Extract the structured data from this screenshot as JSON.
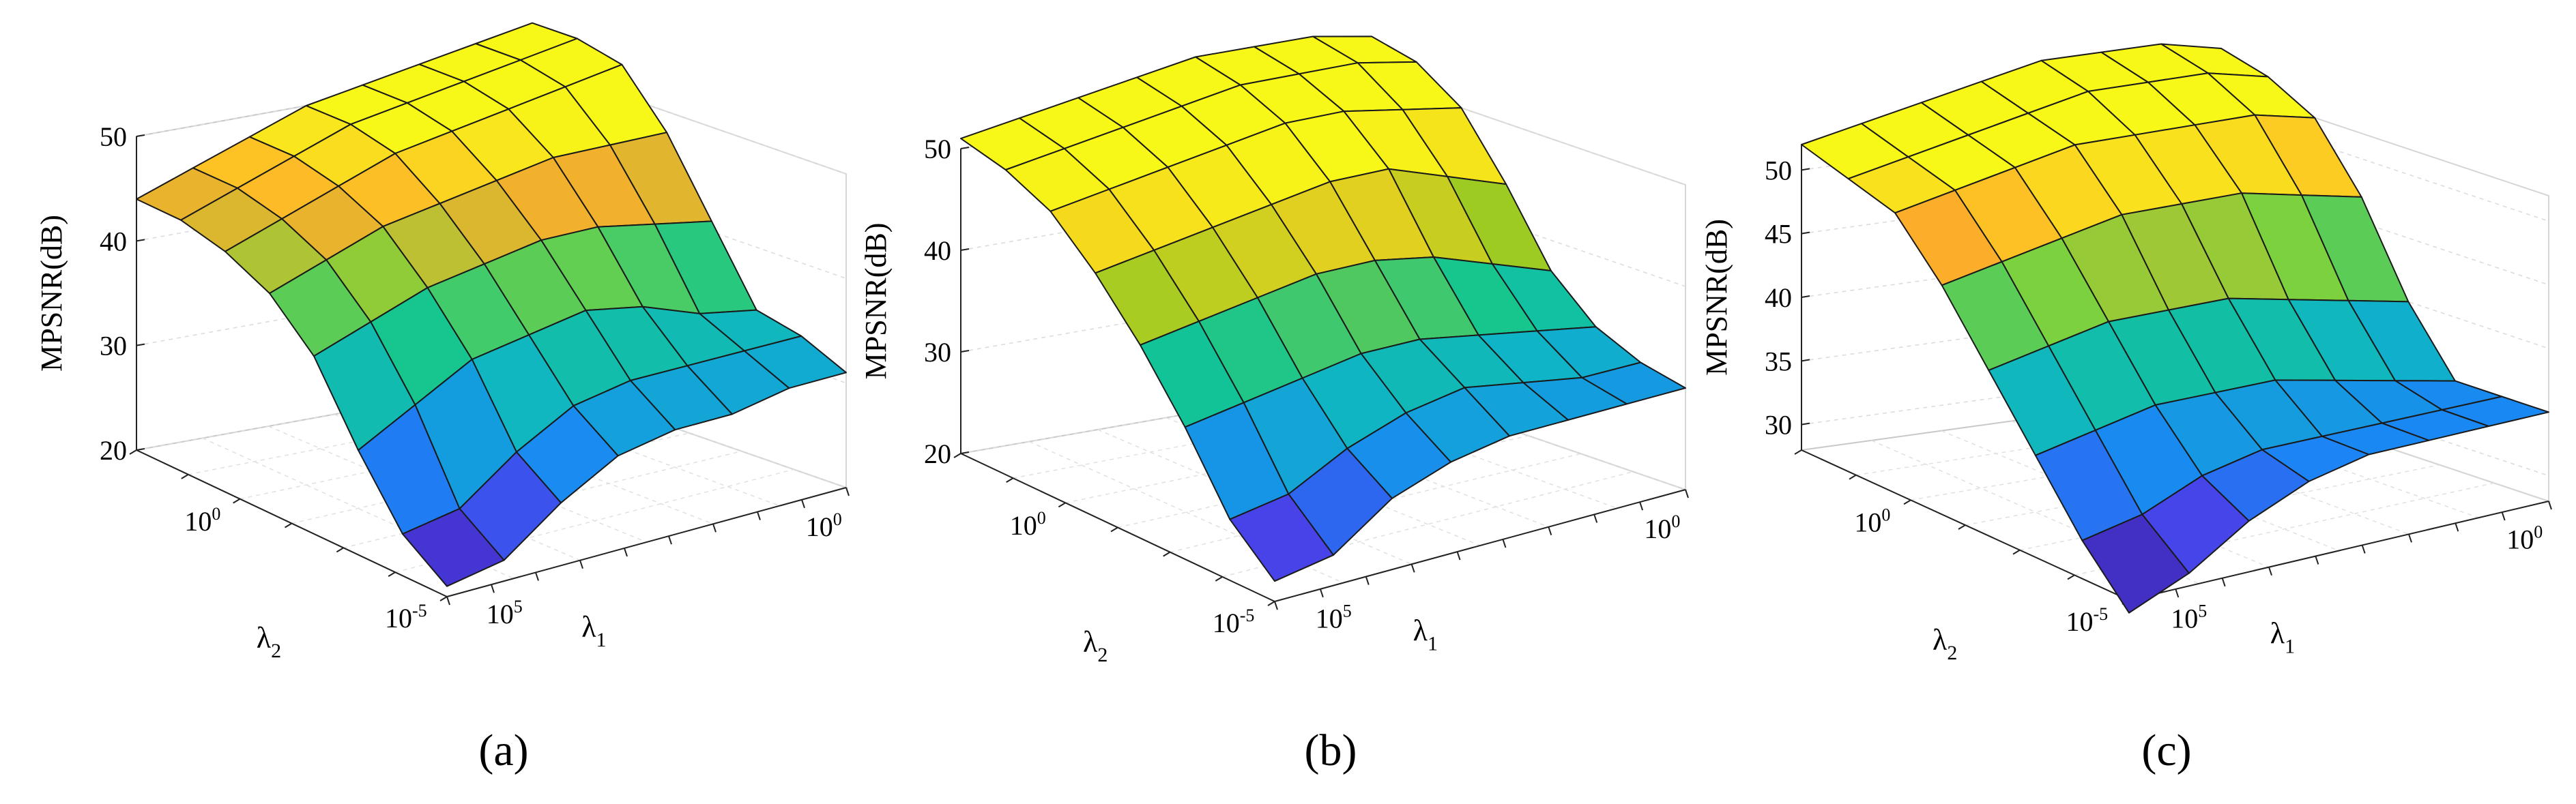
{
  "figure": {
    "panel_labels": [
      "(a)",
      "(b)",
      "(c)"
    ]
  },
  "chart_data": [
    {
      "type": "surface",
      "panel": "(a)",
      "zlabel": "MPSNR(dB)",
      "xlabel": "λ1",
      "ylabel": "λ2",
      "zlim": [
        20,
        50
      ],
      "zticks": [
        20,
        30,
        40,
        50
      ],
      "x_ticks": [
        "10^0",
        "10^5"
      ],
      "y_ticks": [
        "10^0",
        "10^-5"
      ],
      "grid": true,
      "colormap": [
        "#3a1f9e",
        "#4a3ee8",
        "#1a86f5",
        "#0fb3c8",
        "#14c690",
        "#7fd13a",
        "#ffad2b",
        "#f7f718"
      ],
      "colormap_note": "parula",
      "z": [
        [
          44,
          46,
          48,
          50,
          51,
          52,
          53,
          54
        ],
        [
          44,
          46,
          48,
          50,
          51,
          52,
          53,
          54
        ],
        [
          43,
          45,
          47,
          49,
          50,
          51,
          52,
          53
        ],
        [
          41,
          43,
          45,
          46,
          47,
          48,
          48,
          48
        ],
        [
          37,
          39,
          41,
          42,
          43,
          43,
          42,
          41
        ],
        [
          30,
          33,
          36,
          37,
          38,
          37,
          35,
          34
        ],
        [
          24,
          25,
          29,
          32,
          33,
          33,
          33,
          33
        ],
        [
          21,
          22,
          26,
          29,
          30,
          30,
          31,
          31
        ]
      ]
    },
    {
      "type": "surface",
      "panel": "(b)",
      "zlabel": "MPSNR(dB)",
      "xlabel": "λ1",
      "ylabel": "λ2",
      "zlim": [
        20,
        50
      ],
      "zticks": [
        20,
        30,
        40,
        50
      ],
      "x_ticks": [
        "10^0",
        "10^5"
      ],
      "y_ticks": [
        "10^0",
        "10^-5"
      ],
      "grid": true,
      "colormap": [
        "#3a1f9e",
        "#4a3ee8",
        "#1a86f5",
        "#0fb3c8",
        "#14c690",
        "#9ccb22",
        "#f5d21e",
        "#f7f718"
      ],
      "colormap_note": "parula",
      "z": [
        [
          51,
          52,
          53,
          54,
          55,
          55,
          55,
          54
        ],
        [
          50,
          51,
          52,
          53,
          54,
          54,
          54,
          53
        ],
        [
          48,
          49,
          50,
          51,
          52,
          52,
          51,
          50
        ],
        [
          44,
          45,
          46,
          47,
          48,
          48,
          46,
          44
        ],
        [
          39,
          40,
          41,
          42,
          42,
          41,
          39,
          37
        ],
        [
          33,
          34,
          35,
          36,
          36,
          35,
          34,
          33
        ],
        [
          26,
          27,
          30,
          32,
          33,
          32,
          31,
          31
        ],
        [
          22,
          23,
          27,
          29,
          30,
          30,
          30,
          30
        ]
      ]
    },
    {
      "type": "surface",
      "panel": "(c)",
      "zlabel": "MPSNR(dB)",
      "xlabel": "λ1",
      "ylabel": "λ2",
      "zlim": [
        28,
        52
      ],
      "zticks": [
        30,
        35,
        40,
        45,
        50
      ],
      "x_ticks": [
        "10^0",
        "10^5"
      ],
      "y_ticks": [
        "10^0",
        "10^-5"
      ],
      "grid": true,
      "colormap": [
        "#3a1f9e",
        "#4a3ee8",
        "#1a86f5",
        "#0fb3c8",
        "#14c690",
        "#7fd13a",
        "#ffad2b",
        "#f7f718"
      ],
      "colormap_note": "parula",
      "z": [
        [
          52,
          53,
          54,
          55,
          56,
          56,
          56,
          55
        ],
        [
          51,
          52,
          53,
          54,
          55,
          55,
          55,
          54
        ],
        [
          50,
          51,
          52,
          53,
          53,
          53,
          53,
          52
        ],
        [
          46,
          47,
          48,
          49,
          49,
          49,
          48,
          47
        ],
        [
          41,
          42,
          43,
          43,
          43,
          42,
          41,
          40
        ],
        [
          36,
          37,
          38,
          38,
          38,
          37,
          36,
          35
        ],
        [
          31,
          32,
          34,
          35,
          35,
          35,
          35,
          35
        ],
        [
          27,
          29,
          32,
          34,
          35,
          35,
          35,
          35
        ]
      ]
    }
  ]
}
